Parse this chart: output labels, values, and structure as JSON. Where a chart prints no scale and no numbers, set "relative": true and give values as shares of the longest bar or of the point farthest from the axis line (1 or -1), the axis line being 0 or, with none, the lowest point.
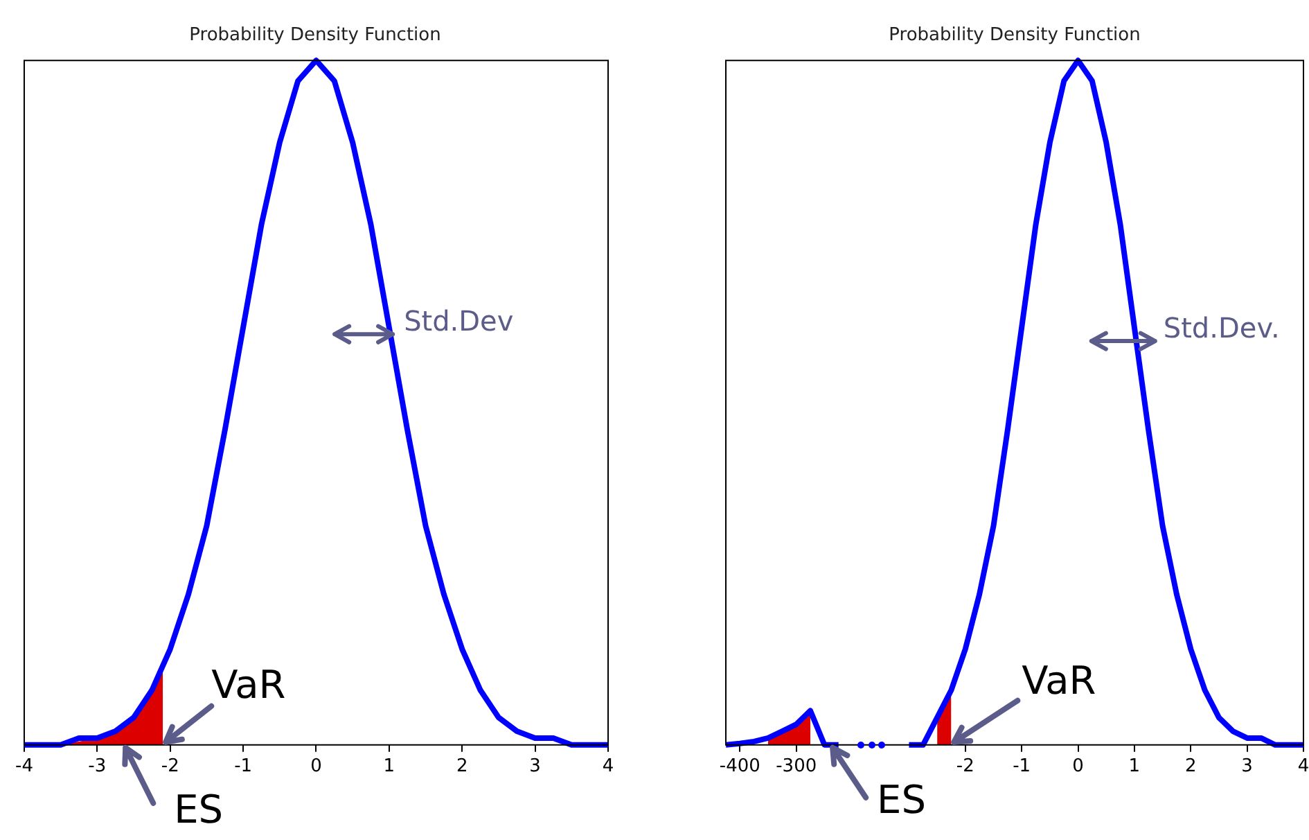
{
  "chart_data": [
    {
      "type": "line",
      "title": "Probability Density Function",
      "relative": true,
      "xlim": [
        -4,
        4
      ],
      "xticks": [
        -4,
        -3,
        -2,
        -1,
        0,
        1,
        2,
        3,
        4
      ],
      "marker": "none",
      "annotations": [
        {
          "text": "Std.Dev",
          "x": 1.05,
          "y": 0.6
        },
        {
          "text": "VaR",
          "x": -2.1,
          "y": 0
        },
        {
          "text": "ES",
          "x": -2.65,
          "y": 0
        }
      ],
      "series": [
        {
          "type": "area",
          "color": "#dd0000",
          "x": [
            -4,
            -3.5,
            -3,
            -2.75,
            -2.5,
            -2.25,
            -2.1
          ],
          "values": [
            0,
            0,
            0.01,
            0.02,
            0.04,
            0.08,
            0.11
          ]
        },
        {
          "type": "line",
          "color": "#0000ff",
          "x": [
            -4,
            -3.75,
            -3.5,
            -3.25,
            -3,
            -2.75,
            -2.5,
            -2.25,
            -2,
            -1.75,
            -1.5,
            -1.25,
            -1,
            -0.75,
            -0.5,
            -0.25,
            0,
            0.25,
            0.5,
            0.75,
            1,
            1.25,
            1.5,
            1.75,
            2,
            2.25,
            2.5,
            2.75,
            3,
            3.25,
            3.5,
            3.75,
            4
          ],
          "values": [
            0,
            0,
            0,
            0.01,
            0.01,
            0.02,
            0.04,
            0.08,
            0.14,
            0.22,
            0.32,
            0.46,
            0.61,
            0.76,
            0.88,
            0.97,
            1,
            0.97,
            0.88,
            0.76,
            0.61,
            0.46,
            0.32,
            0.22,
            0.14,
            0.08,
            0.04,
            0.02,
            0.01,
            0.01,
            0,
            0,
            0
          ]
        }
      ]
    },
    {
      "type": "line",
      "title": "Probability Density Function",
      "relative": true,
      "marker": "none",
      "annotations": [
        "ES",
        "Std.Dev.",
        "VaR"
      ],
      "categories": [
        null,
        "-400",
        null,
        null,
        null,
        "-300",
        null,
        null,
        null,
        null,
        null,
        null,
        null,
        null,
        null,
        null,
        null,
        "-2",
        null,
        null,
        null,
        "-1",
        null,
        null,
        null,
        "0",
        null,
        null,
        null,
        "1",
        null,
        null,
        null,
        "2",
        null,
        null,
        null,
        "3",
        null,
        null,
        null,
        "4"
      ],
      "series": [
        {
          "type": "area",
          "color": "#dd0000",
          "values": [
            null,
            null,
            null,
            0.01,
            0.02,
            0.03,
            0.05,
            null,
            null,
            null,
            null,
            null,
            null,
            null,
            null,
            null,
            null,
            null,
            null,
            null,
            null,
            null,
            null,
            null,
            null,
            null,
            null,
            null,
            null,
            null,
            null,
            null,
            null,
            null,
            null,
            null,
            null,
            null,
            null,
            null,
            null,
            null
          ]
        },
        {
          "type": "area",
          "color": "#dd0000",
          "values": [
            null,
            null,
            null,
            null,
            null,
            null,
            null,
            null,
            null,
            null,
            null,
            null,
            null,
            null,
            null,
            0.04,
            0.08,
            null,
            null,
            null,
            null,
            null,
            null,
            null,
            null,
            null,
            null,
            null,
            null,
            null,
            null,
            null,
            null,
            null,
            null,
            null,
            null,
            null,
            null,
            null,
            null,
            null
          ]
        },
        {
          "type": "line",
          "color": "#0000ff",
          "values": [
            0,
            0.002,
            0.005,
            0.01,
            0.02,
            0.03,
            0.05,
            0,
            0,
            null,
            null,
            null,
            null,
            0,
            0,
            0.04,
            0.08,
            0.14,
            0.22,
            0.32,
            0.46,
            0.61,
            0.76,
            0.88,
            0.97,
            1,
            0.97,
            0.88,
            0.76,
            0.61,
            0.46,
            0.32,
            0.22,
            0.14,
            0.08,
            0.04,
            0.02,
            0.01,
            0.01,
            0,
            0,
            0
          ]
        }
      ]
    }
  ]
}
